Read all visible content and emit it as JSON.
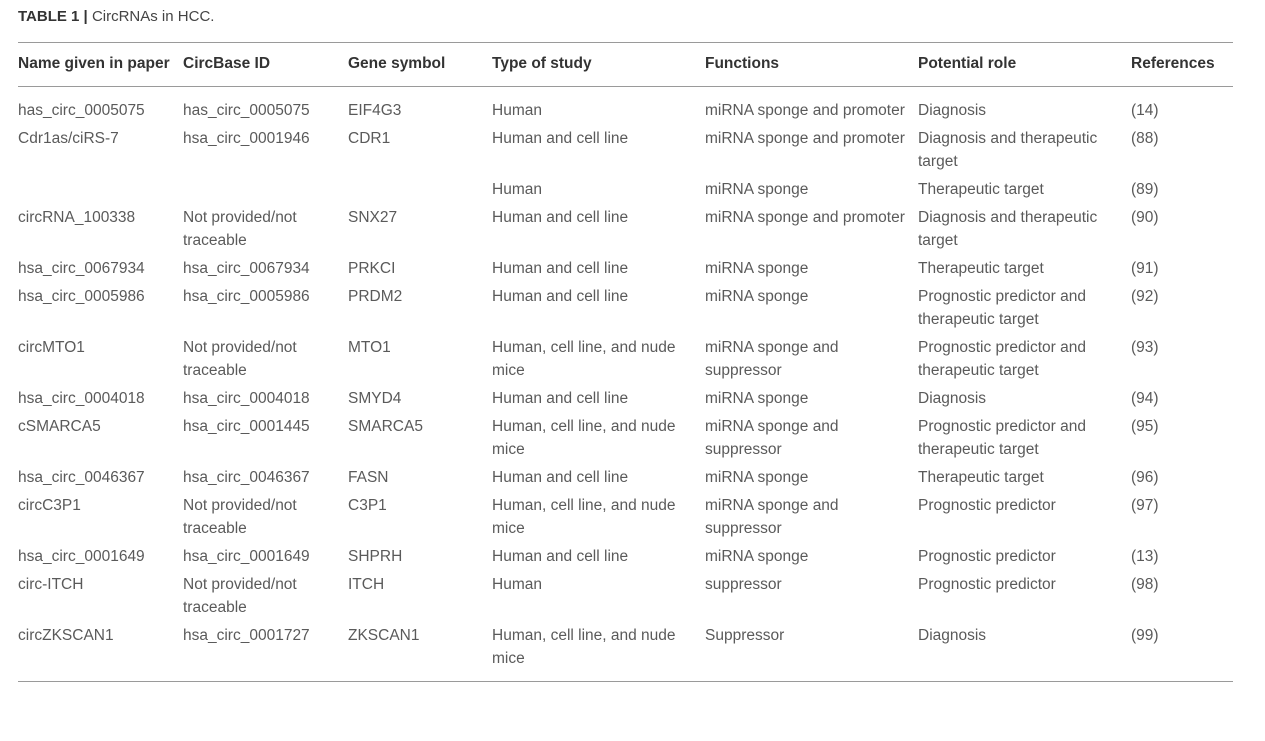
{
  "caption": {
    "label": "TABLE 1 |",
    "text": "CircRNAs in HCC."
  },
  "table": {
    "headers": [
      "Name given in paper",
      "CircBase ID",
      "Gene symbol",
      "Type of study",
      "Functions",
      "Potential role",
      "References"
    ],
    "rows": [
      [
        "has_circ_0005075",
        "has_circ_0005075",
        "EIF4G3",
        "Human",
        "miRNA sponge and promoter",
        "Diagnosis",
        "(14)"
      ],
      [
        "Cdr1as/ciRS-7",
        "hsa_circ_0001946",
        "CDR1",
        "Human and cell line",
        "miRNA sponge and promoter",
        "Diagnosis and therapeutic target",
        "(88)"
      ],
      [
        null,
        null,
        null,
        "Human",
        "miRNA sponge",
        "Therapeutic target",
        "(89)"
      ],
      [
        "circRNA_100338",
        "Not provided/not traceable",
        "SNX27",
        "Human and cell line",
        "miRNA sponge and promoter",
        "Diagnosis and therapeutic target",
        "(90)"
      ],
      [
        "hsa_circ_0067934",
        "hsa_circ_0067934",
        "PRKCI",
        "Human and cell line",
        "miRNA sponge",
        "Therapeutic target",
        "(91)"
      ],
      [
        "hsa_circ_0005986",
        "hsa_circ_0005986",
        "PRDM2",
        "Human and cell line",
        "miRNA sponge",
        "Prognostic predictor and therapeutic target",
        "(92)"
      ],
      [
        "circMTO1",
        "Not provided/not traceable",
        "MTO1",
        "Human, cell line, and nude mice",
        "miRNA sponge and suppressor",
        "Prognostic predictor and therapeutic target",
        "(93)"
      ],
      [
        "hsa_circ_0004018",
        "hsa_circ_0004018",
        "SMYD4",
        "Human and cell line",
        "miRNA sponge",
        "Diagnosis",
        "(94)"
      ],
      [
        "cSMARCA5",
        "hsa_circ_0001445",
        "SMARCA5",
        "Human, cell line, and nude mice",
        "miRNA sponge and suppressor",
        "Prognostic predictor and therapeutic target",
        "(95)"
      ],
      [
        "hsa_circ_0046367",
        "hsa_circ_0046367",
        "FASN",
        "Human and cell line",
        "miRNA sponge",
        "Therapeutic target",
        "(96)"
      ],
      [
        "circC3P1",
        "Not provided/not traceable",
        "C3P1",
        "Human, cell line, and nude mice",
        "miRNA sponge and suppressor",
        "Prognostic predictor",
        "(97)"
      ],
      [
        "hsa_circ_0001649",
        "hsa_circ_0001649",
        "SHPRH",
        "Human and cell line",
        "miRNA sponge",
        "Prognostic predictor",
        "(13)"
      ],
      [
        "circ-ITCH",
        "Not provided/not traceable",
        "ITCH",
        "Human",
        "suppressor",
        "Prognostic predictor",
        "(98)"
      ],
      [
        "circZKSCAN1",
        "hsa_circ_0001727",
        "ZKSCAN1",
        "Human, cell line, and nude mice",
        "Suppressor",
        "Diagnosis",
        "(99)"
      ]
    ]
  }
}
